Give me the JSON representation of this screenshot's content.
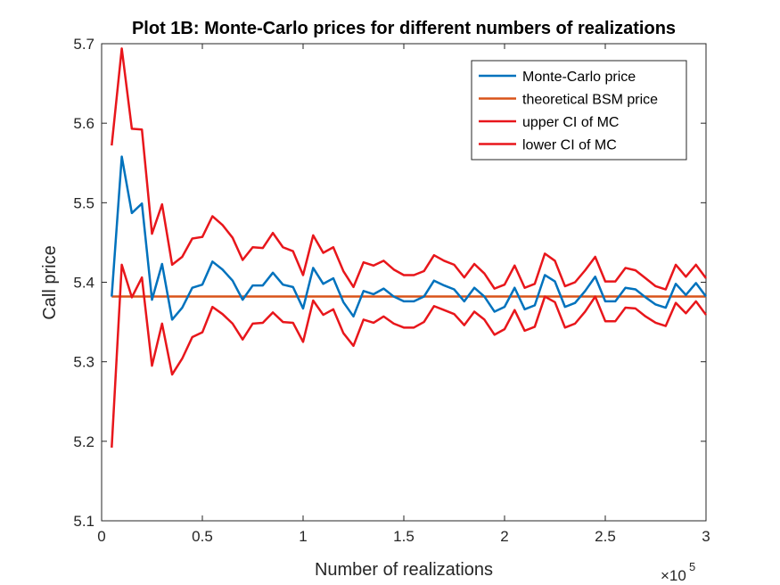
{
  "chart_data": {
    "type": "line",
    "title": "Plot 1B: Monte-Carlo prices for different numbers of realizations",
    "xlabel": "Number of realizations",
    "ylabel": "Call price",
    "x_exponent": {
      "base": "×10",
      "power": "5"
    },
    "xlim": [
      0,
      3
    ],
    "ylim": [
      5.1,
      5.7
    ],
    "xticks": [
      0,
      0.5,
      1,
      1.5,
      2,
      2.5,
      3
    ],
    "xtick_labels": [
      "0",
      "0.5",
      "1",
      "1.5",
      "2",
      "2.5",
      "3"
    ],
    "yticks": [
      5.1,
      5.2,
      5.3,
      5.4,
      5.5,
      5.6,
      5.7
    ],
    "ytick_labels": [
      "5.1",
      "5.2",
      "5.3",
      "5.4",
      "5.5",
      "5.6",
      "5.7"
    ],
    "grid": false,
    "legend_position": "top-right",
    "x": [
      0.05,
      0.1,
      0.15,
      0.2,
      0.25,
      0.3,
      0.35,
      0.4,
      0.45,
      0.5,
      0.55,
      0.6,
      0.65,
      0.7,
      0.75,
      0.8,
      0.85,
      0.9,
      0.95,
      1.0,
      1.05,
      1.1,
      1.15,
      1.2,
      1.25,
      1.3,
      1.35,
      1.4,
      1.45,
      1.5,
      1.55,
      1.6,
      1.65,
      1.7,
      1.75,
      1.8,
      1.85,
      1.9,
      1.95,
      2.0,
      2.05,
      2.1,
      2.15,
      2.2,
      2.25,
      2.3,
      2.35,
      2.4,
      2.45,
      2.5,
      2.55,
      2.6,
      2.65,
      2.7,
      2.75,
      2.8,
      2.85,
      2.9,
      2.95,
      3.0
    ],
    "series": [
      {
        "name": "Monte-Carlo price",
        "color": "#0072BD",
        "values": [
          5.382,
          5.558,
          5.487,
          5.499,
          5.378,
          5.423,
          5.353,
          5.368,
          5.393,
          5.397,
          5.426,
          5.416,
          5.402,
          5.378,
          5.396,
          5.396,
          5.412,
          5.397,
          5.394,
          5.367,
          5.418,
          5.398,
          5.405,
          5.375,
          5.357,
          5.389,
          5.385,
          5.392,
          5.382,
          5.376,
          5.376,
          5.382,
          5.402,
          5.396,
          5.391,
          5.376,
          5.393,
          5.382,
          5.363,
          5.369,
          5.393,
          5.366,
          5.371,
          5.409,
          5.401,
          5.369,
          5.374,
          5.389,
          5.407,
          5.376,
          5.376,
          5.393,
          5.391,
          5.381,
          5.372,
          5.368,
          5.398,
          5.384,
          5.399,
          5.382
        ]
      },
      {
        "name": "theoretical BSM price",
        "color": "#D95319",
        "constant": 5.382
      },
      {
        "name": "upper CI of MC",
        "color": "#E8161B",
        "values": [
          5.572,
          5.694,
          5.593,
          5.592,
          5.461,
          5.498,
          5.422,
          5.432,
          5.455,
          5.457,
          5.483,
          5.472,
          5.456,
          5.428,
          5.444,
          5.443,
          5.462,
          5.444,
          5.439,
          5.409,
          5.459,
          5.437,
          5.444,
          5.414,
          5.394,
          5.425,
          5.421,
          5.427,
          5.416,
          5.409,
          5.409,
          5.414,
          5.434,
          5.427,
          5.422,
          5.406,
          5.423,
          5.411,
          5.392,
          5.397,
          5.421,
          5.393,
          5.398,
          5.436,
          5.427,
          5.395,
          5.4,
          5.415,
          5.432,
          5.401,
          5.401,
          5.418,
          5.415,
          5.405,
          5.395,
          5.391,
          5.422,
          5.407,
          5.422,
          5.405
        ]
      },
      {
        "name": "lower CI of MC",
        "color": "#E8161B",
        "values": [
          5.192,
          5.422,
          5.381,
          5.406,
          5.295,
          5.348,
          5.284,
          5.304,
          5.331,
          5.337,
          5.369,
          5.36,
          5.348,
          5.328,
          5.348,
          5.349,
          5.362,
          5.35,
          5.349,
          5.325,
          5.377,
          5.359,
          5.366,
          5.336,
          5.32,
          5.353,
          5.349,
          5.357,
          5.348,
          5.343,
          5.343,
          5.35,
          5.37,
          5.365,
          5.36,
          5.346,
          5.363,
          5.353,
          5.334,
          5.341,
          5.365,
          5.339,
          5.344,
          5.382,
          5.375,
          5.343,
          5.348,
          5.363,
          5.382,
          5.351,
          5.351,
          5.368,
          5.367,
          5.357,
          5.349,
          5.345,
          5.374,
          5.361,
          5.376,
          5.359
        ]
      }
    ]
  }
}
